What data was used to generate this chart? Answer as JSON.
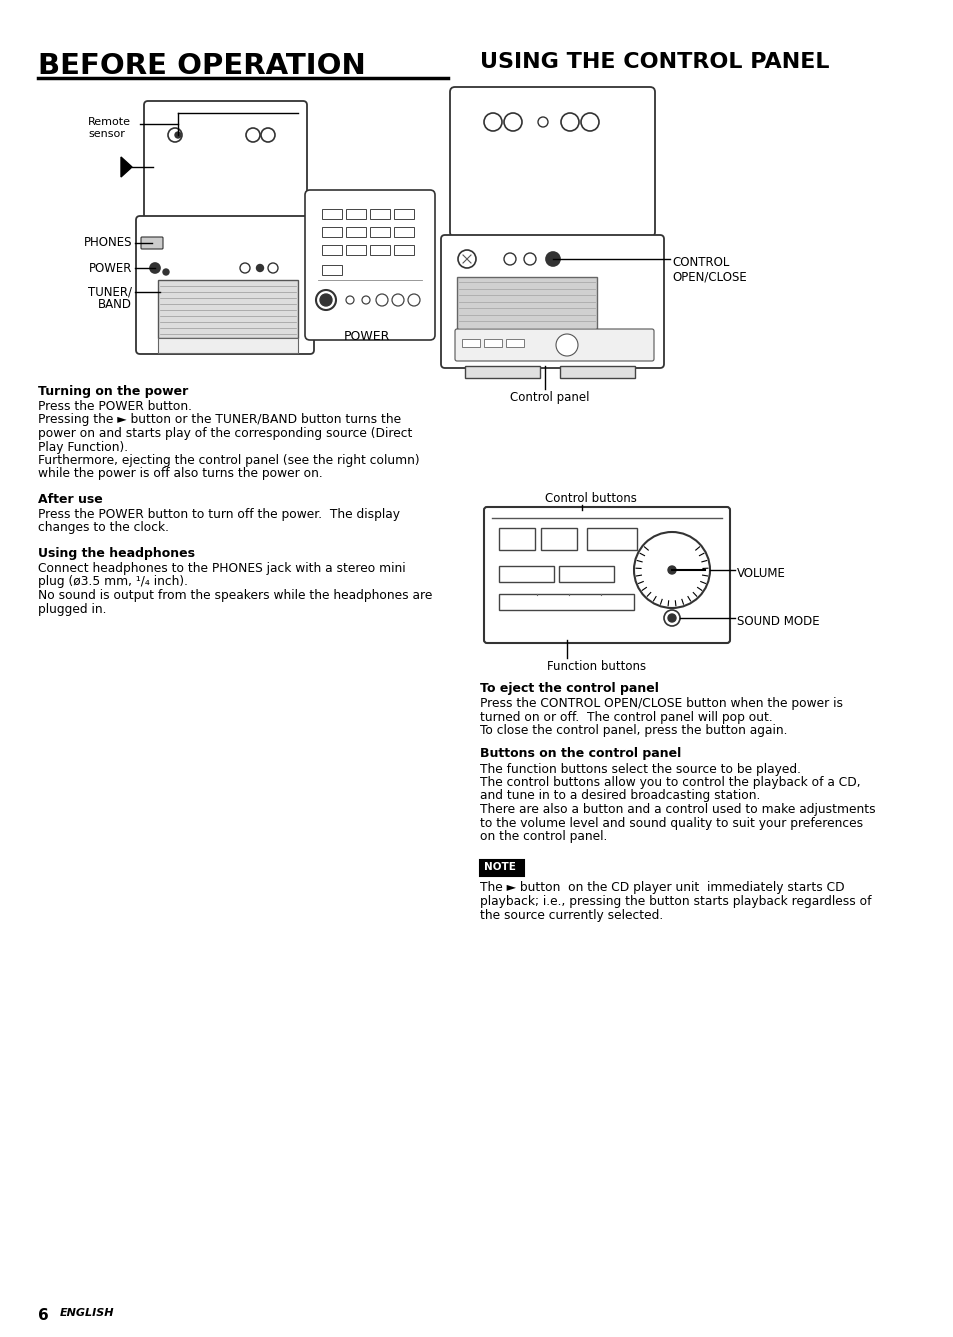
{
  "background_color": "#ffffff",
  "page_number": "6",
  "page_label": "ENGLISH",
  "left_title": "BEFORE OPERATION",
  "right_title": "USING THE CONTROL PANEL",
  "left_sections": [
    {
      "heading": "Turning on the power",
      "body": "Press the POWER button.\nPressing the ► button or the TUNER/BAND button turns the\npower on and starts play of the corresponding source (Direct\nPlay Function).\nFurthermore, ejecting the control panel (see the right column)\nwhile the power is off also turns the power on."
    },
    {
      "heading": "After use",
      "body": "Press the POWER button to turn off the power.  The display\nchanges to the clock."
    },
    {
      "heading": "Using the headphones",
      "body": "Connect headphones to the PHONES jack with a stereo mini\nplug (ø3.5 mm, ¹/₄ inch).\nNo sound is output from the speakers while the headphones are\nplugged in."
    }
  ],
  "right_sections": [
    {
      "heading": "To eject the control panel",
      "body": "Press the CONTROL OPEN/CLOSE button when the power is\nturned on or off.  The control panel will pop out.\nTo close the control panel, press the button again."
    },
    {
      "heading": "Buttons on the control panel",
      "body": ""
    },
    {
      "heading": "",
      "body": "The function buttons select the source to be played.\nThe control buttons allow you to control the playback of a CD,\nand tune in to a desired broadcasting station.\nThere are also a button and a control used to make adjustments\nto the volume level and sound quality to suit your preferences\non the control panel."
    },
    {
      "heading": "note",
      "body": "The ► button  on the CD player unit  immediately starts CD\nplayback; i.e., pressing the button starts playback regardless of\nthe source currently selected."
    }
  ]
}
